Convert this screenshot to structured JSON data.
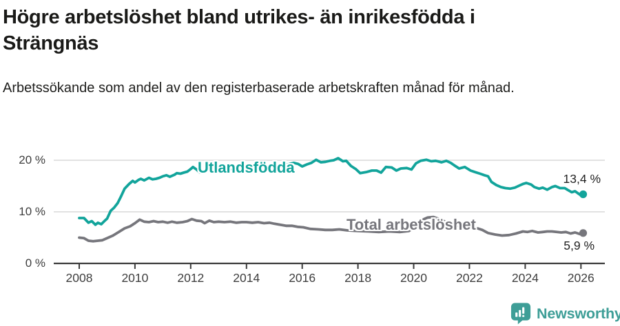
{
  "header": {
    "title": "Högre arbetslöshet bland utrikes- än inrikesfödda i Strängnäs",
    "subtitle": "Arbetssökande som andel av den registerbaserade arbetskraften månad för månad."
  },
  "chart_data": {
    "type": "line",
    "title": "Högre arbetslöshet bland utrikes- än inrikesfödda i Strängnäs",
    "subtitle": "Arbetssökande som andel av den registerbaserade arbetskraften månad för månad.",
    "unit": "%",
    "grid": "horizontal",
    "legend_position": "inline-on-lines",
    "x_axis": {
      "min": 2007.55,
      "max": 2026.85,
      "ticks": [
        2008,
        2010,
        2012,
        2014,
        2016,
        2018,
        2020,
        2022,
        2024,
        2026
      ],
      "tick_labels": [
        "2008",
        "2010",
        "2012",
        "2014",
        "2016",
        "2018",
        "2020",
        "2022",
        "2024",
        "2026"
      ]
    },
    "y_axis": {
      "min": 0,
      "max": 21.5,
      "ticks": [
        0,
        10,
        20
      ],
      "tick_labels": [
        "0 %",
        "10 %",
        "20 %"
      ]
    },
    "series": [
      {
        "name": "Utlandsfödda",
        "color": "#12a49b",
        "end_value": 13.4,
        "end_label": "13,4 %",
        "points": [
          [
            2008.0,
            8.8
          ],
          [
            2008.17,
            8.8
          ],
          [
            2008.33,
            7.9
          ],
          [
            2008.45,
            8.2
          ],
          [
            2008.58,
            7.5
          ],
          [
            2008.67,
            7.9
          ],
          [
            2008.79,
            7.6
          ],
          [
            2008.92,
            8.3
          ],
          [
            2009.0,
            8.7
          ],
          [
            2009.13,
            10.2
          ],
          [
            2009.25,
            10.8
          ],
          [
            2009.38,
            11.7
          ],
          [
            2009.5,
            13.0
          ],
          [
            2009.63,
            14.5
          ],
          [
            2009.79,
            15.4
          ],
          [
            2009.92,
            16.0
          ],
          [
            2010.0,
            15.7
          ],
          [
            2010.13,
            16.2
          ],
          [
            2010.21,
            16.4
          ],
          [
            2010.33,
            16.1
          ],
          [
            2010.5,
            16.6
          ],
          [
            2010.63,
            16.3
          ],
          [
            2010.75,
            16.4
          ],
          [
            2010.88,
            16.6
          ],
          [
            2011.0,
            16.9
          ],
          [
            2011.13,
            17.1
          ],
          [
            2011.25,
            16.8
          ],
          [
            2011.42,
            17.2
          ],
          [
            2011.5,
            17.5
          ],
          [
            2011.63,
            17.4
          ],
          [
            2011.75,
            17.6
          ],
          [
            2011.88,
            17.8
          ],
          [
            2012.0,
            18.3
          ],
          [
            2012.08,
            18.7
          ],
          [
            2012.21,
            18.2
          ],
          [
            2012.33,
            17.6
          ],
          [
            2012.5,
            17.8
          ],
          [
            2012.63,
            18.0
          ],
          [
            2012.79,
            17.8
          ],
          [
            2013.0,
            18.2
          ],
          [
            2013.21,
            18.5
          ],
          [
            2013.42,
            18.3
          ],
          [
            2013.63,
            18.5
          ],
          [
            2013.83,
            18.4
          ],
          [
            2014.0,
            18.6
          ],
          [
            2014.25,
            18.7
          ],
          [
            2014.5,
            18.8
          ],
          [
            2014.75,
            18.7
          ],
          [
            2015.0,
            19.0
          ],
          [
            2015.25,
            19.1
          ],
          [
            2015.5,
            19.2
          ],
          [
            2015.7,
            19.5
          ],
          [
            2015.85,
            19.3
          ],
          [
            2016.0,
            18.8
          ],
          [
            2016.17,
            19.2
          ],
          [
            2016.33,
            19.5
          ],
          [
            2016.5,
            20.1
          ],
          [
            2016.67,
            19.6
          ],
          [
            2016.83,
            19.7
          ],
          [
            2017.0,
            19.9
          ],
          [
            2017.13,
            20.0
          ],
          [
            2017.29,
            20.4
          ],
          [
            2017.46,
            19.8
          ],
          [
            2017.58,
            19.9
          ],
          [
            2017.75,
            18.9
          ],
          [
            2017.92,
            18.3
          ],
          [
            2018.08,
            17.5
          ],
          [
            2018.29,
            17.7
          ],
          [
            2018.5,
            18.0
          ],
          [
            2018.67,
            18.0
          ],
          [
            2018.83,
            17.6
          ],
          [
            2019.0,
            18.7
          ],
          [
            2019.21,
            18.6
          ],
          [
            2019.38,
            18.0
          ],
          [
            2019.54,
            18.4
          ],
          [
            2019.75,
            18.5
          ],
          [
            2019.92,
            18.2
          ],
          [
            2020.08,
            19.4
          ],
          [
            2020.25,
            19.9
          ],
          [
            2020.46,
            20.1
          ],
          [
            2020.63,
            19.8
          ],
          [
            2020.79,
            19.9
          ],
          [
            2021.0,
            19.6
          ],
          [
            2021.17,
            19.9
          ],
          [
            2021.33,
            19.5
          ],
          [
            2021.46,
            19.0
          ],
          [
            2021.63,
            18.4
          ],
          [
            2021.83,
            18.7
          ],
          [
            2022.04,
            18.0
          ],
          [
            2022.21,
            17.7
          ],
          [
            2022.38,
            17.4
          ],
          [
            2022.54,
            17.1
          ],
          [
            2022.67,
            16.9
          ],
          [
            2022.79,
            15.8
          ],
          [
            2022.96,
            15.2
          ],
          [
            2023.13,
            14.8
          ],
          [
            2023.29,
            14.6
          ],
          [
            2023.46,
            14.5
          ],
          [
            2023.63,
            14.7
          ],
          [
            2023.79,
            15.1
          ],
          [
            2023.92,
            15.4
          ],
          [
            2024.04,
            15.6
          ],
          [
            2024.21,
            15.3
          ],
          [
            2024.33,
            14.8
          ],
          [
            2024.5,
            14.5
          ],
          [
            2024.63,
            14.7
          ],
          [
            2024.79,
            14.3
          ],
          [
            2024.96,
            14.8
          ],
          [
            2025.08,
            15.0
          ],
          [
            2025.25,
            14.6
          ],
          [
            2025.42,
            14.6
          ],
          [
            2025.54,
            14.2
          ],
          [
            2025.67,
            13.8
          ],
          [
            2025.79,
            14.0
          ],
          [
            2025.92,
            13.5
          ],
          [
            2026.0,
            13.2
          ],
          [
            2026.08,
            13.4
          ]
        ]
      },
      {
        "name": "Total arbetslöshet",
        "color": "#76767c",
        "end_value": 5.9,
        "end_label": "5,9 %",
        "points": [
          [
            2008.0,
            5.0
          ],
          [
            2008.17,
            4.9
          ],
          [
            2008.33,
            4.4
          ],
          [
            2008.5,
            4.3
          ],
          [
            2008.67,
            4.4
          ],
          [
            2008.83,
            4.5
          ],
          [
            2009.0,
            4.9
          ],
          [
            2009.21,
            5.4
          ],
          [
            2009.42,
            6.1
          ],
          [
            2009.63,
            6.8
          ],
          [
            2009.83,
            7.2
          ],
          [
            2010.0,
            7.8
          ],
          [
            2010.17,
            8.5
          ],
          [
            2010.33,
            8.1
          ],
          [
            2010.5,
            8.0
          ],
          [
            2010.67,
            8.2
          ],
          [
            2010.83,
            8.0
          ],
          [
            2011.0,
            8.1
          ],
          [
            2011.17,
            7.9
          ],
          [
            2011.33,
            8.1
          ],
          [
            2011.5,
            7.9
          ],
          [
            2011.71,
            8.0
          ],
          [
            2011.88,
            8.2
          ],
          [
            2012.04,
            8.6
          ],
          [
            2012.21,
            8.3
          ],
          [
            2012.38,
            8.2
          ],
          [
            2012.5,
            7.8
          ],
          [
            2012.67,
            8.3
          ],
          [
            2012.83,
            8.0
          ],
          [
            2013.0,
            8.1
          ],
          [
            2013.21,
            8.0
          ],
          [
            2013.42,
            8.1
          ],
          [
            2013.63,
            7.9
          ],
          [
            2013.83,
            8.0
          ],
          [
            2014.0,
            8.0
          ],
          [
            2014.21,
            7.9
          ],
          [
            2014.42,
            8.0
          ],
          [
            2014.63,
            7.8
          ],
          [
            2014.83,
            7.9
          ],
          [
            2015.0,
            7.7
          ],
          [
            2015.21,
            7.5
          ],
          [
            2015.42,
            7.3
          ],
          [
            2015.63,
            7.3
          ],
          [
            2015.83,
            7.1
          ],
          [
            2016.04,
            7.0
          ],
          [
            2016.29,
            6.7
          ],
          [
            2016.58,
            6.6
          ],
          [
            2016.83,
            6.5
          ],
          [
            2017.08,
            6.5
          ],
          [
            2017.33,
            6.6
          ],
          [
            2017.63,
            6.4
          ],
          [
            2018.0,
            6.3
          ],
          [
            2018.38,
            6.2
          ],
          [
            2018.75,
            6.1
          ],
          [
            2019.13,
            6.2
          ],
          [
            2019.5,
            6.1
          ],
          [
            2019.83,
            6.3
          ],
          [
            2020.08,
            7.2
          ],
          [
            2020.29,
            8.4
          ],
          [
            2020.5,
            8.9
          ],
          [
            2020.71,
            9.0
          ],
          [
            2020.92,
            8.6
          ],
          [
            2021.17,
            8.0
          ],
          [
            2021.5,
            7.5
          ],
          [
            2021.79,
            7.1
          ],
          [
            2022.08,
            6.9
          ],
          [
            2022.29,
            6.8
          ],
          [
            2022.46,
            6.5
          ],
          [
            2022.67,
            5.9
          ],
          [
            2022.92,
            5.6
          ],
          [
            2023.17,
            5.4
          ],
          [
            2023.42,
            5.5
          ],
          [
            2023.67,
            5.8
          ],
          [
            2023.92,
            6.2
          ],
          [
            2024.08,
            6.1
          ],
          [
            2024.25,
            6.3
          ],
          [
            2024.46,
            6.0
          ],
          [
            2024.63,
            6.1
          ],
          [
            2024.79,
            6.2
          ],
          [
            2024.96,
            6.2
          ],
          [
            2025.13,
            6.1
          ],
          [
            2025.29,
            6.0
          ],
          [
            2025.46,
            6.1
          ],
          [
            2025.63,
            5.8
          ],
          [
            2025.79,
            6.0
          ],
          [
            2025.96,
            5.7
          ],
          [
            2026.08,
            5.9
          ]
        ]
      }
    ]
  },
  "footer": {
    "brand": "Newsworthy"
  },
  "colors": {
    "series_foreign_born": "#12a49b",
    "series_total": "#76767c",
    "axis": "#3d3d3d",
    "gridline": "#d9d9d9",
    "title_text": "#1a1a18",
    "brand_teal": "#3e9e97"
  }
}
